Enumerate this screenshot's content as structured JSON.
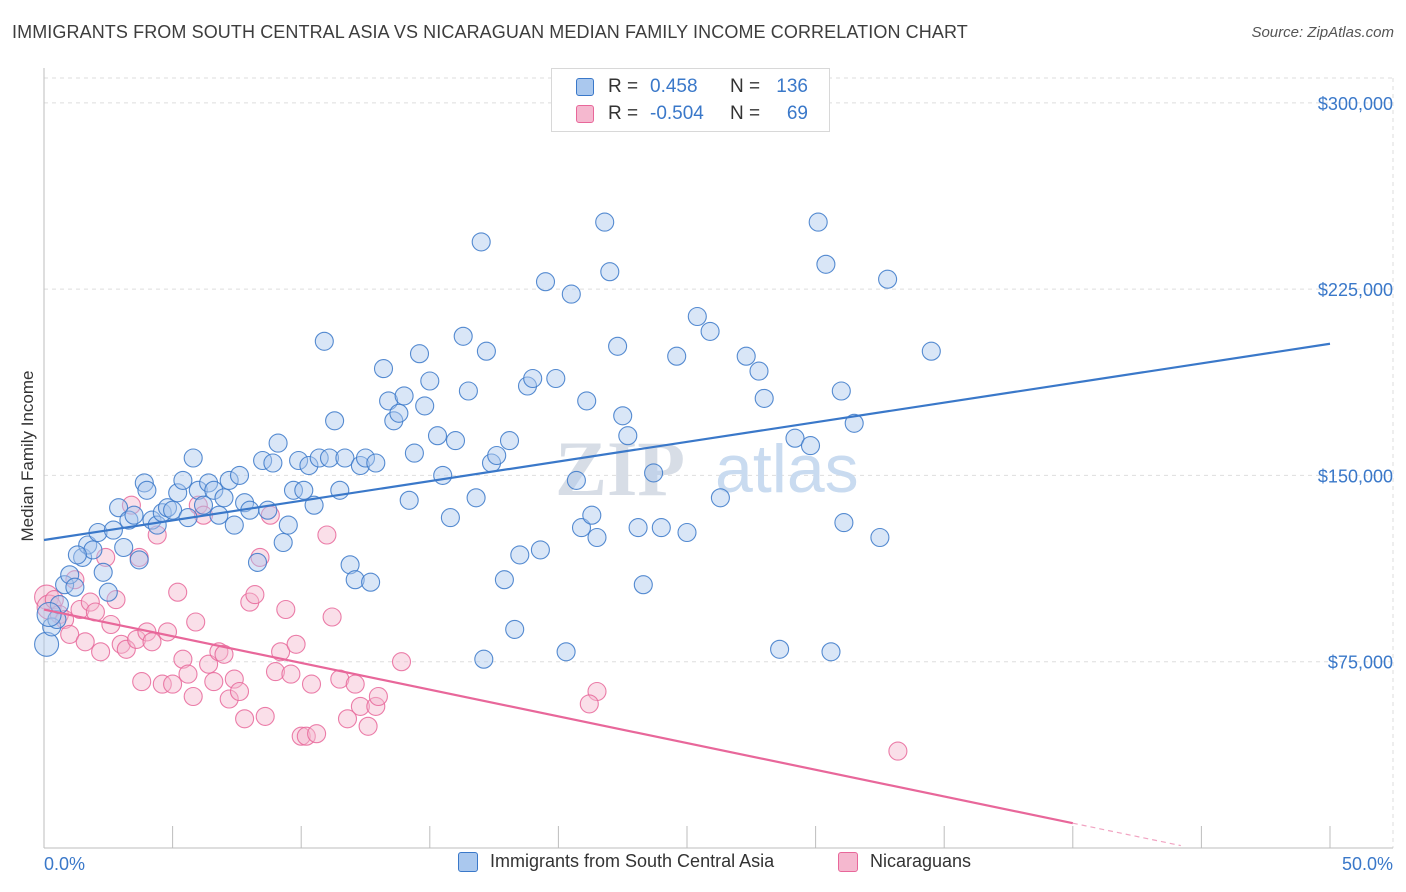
{
  "header": {
    "title": "IMMIGRANTS FROM SOUTH CENTRAL ASIA VS NICARAGUAN MEDIAN FAMILY INCOME CORRELATION CHART",
    "source": "Source: ZipAtlas.com"
  },
  "colors": {
    "blue": "#3a78c9",
    "blue_fill": "#aac8ee",
    "pink": "#e8679a",
    "pink_fill": "#f5b8cf",
    "grid": "#dddddd"
  },
  "legend": {
    "rows": [
      {
        "r_label": "R =",
        "r_value": "0.458",
        "n_label": "N =",
        "n_value": "136"
      },
      {
        "r_label": "R =",
        "r_value": "-0.504",
        "n_label": "N =",
        "n_value": "69"
      }
    ]
  },
  "bottom_legend": {
    "series1": "Immigrants from South Central Asia",
    "series2": "Nicaraguans"
  },
  "watermark": {
    "part1": "ZIP",
    "part2": "atlas"
  },
  "chart_data": {
    "type": "scatter",
    "title": "IMMIGRANTS FROM SOUTH CENTRAL ASIA VS NICARAGUAN MEDIAN FAMILY INCOME CORRELATION CHART",
    "xlabel": "",
    "ylabel": "Median Family Income",
    "xlim": [
      0,
      50
    ],
    "ylim": [
      0,
      310000
    ],
    "x_tick_labels": [
      "0.0%",
      "50.0%"
    ],
    "y_ticks": [
      75000,
      150000,
      225000,
      300000
    ],
    "y_tick_labels": [
      "$75,000",
      "$150,000",
      "$225,000",
      "$300,000"
    ],
    "series": [
      {
        "name": "Immigrants from South Central Asia",
        "r": 0.458,
        "n": 136,
        "trend": {
          "x": [
            0,
            50
          ],
          "y": [
            124000,
            203000
          ]
        },
        "points": [
          [
            0.1,
            82000
          ],
          [
            0.3,
            89000
          ],
          [
            0.5,
            92000
          ],
          [
            0.6,
            98000
          ],
          [
            0.8,
            106000
          ],
          [
            1.0,
            110000
          ],
          [
            1.2,
            105000
          ],
          [
            1.5,
            117000
          ],
          [
            1.7,
            122000
          ],
          [
            1.9,
            120000
          ],
          [
            2.1,
            127000
          ],
          [
            2.3,
            111000
          ],
          [
            2.5,
            103000
          ],
          [
            2.7,
            128000
          ],
          [
            2.9,
            137000
          ],
          [
            3.1,
            121000
          ],
          [
            3.3,
            132000
          ],
          [
            3.5,
            134000
          ],
          [
            3.7,
            116000
          ],
          [
            3.9,
            147000
          ],
          [
            4.0,
            144000
          ],
          [
            4.2,
            132000
          ],
          [
            4.4,
            130000
          ],
          [
            4.6,
            135000
          ],
          [
            4.8,
            137000
          ],
          [
            5.0,
            136000
          ],
          [
            5.2,
            143000
          ],
          [
            5.4,
            148000
          ],
          [
            5.6,
            133000
          ],
          [
            5.8,
            157000
          ],
          [
            6.0,
            144000
          ],
          [
            6.2,
            138000
          ],
          [
            6.4,
            147000
          ],
          [
            6.6,
            144000
          ],
          [
            6.8,
            134000
          ],
          [
            7.0,
            141000
          ],
          [
            7.2,
            148000
          ],
          [
            7.4,
            130000
          ],
          [
            7.6,
            150000
          ],
          [
            7.8,
            139000
          ],
          [
            8.0,
            136000
          ],
          [
            8.3,
            115000
          ],
          [
            8.5,
            156000
          ],
          [
            8.7,
            136000
          ],
          [
            8.9,
            155000
          ],
          [
            9.1,
            163000
          ],
          [
            9.3,
            123000
          ],
          [
            9.5,
            130000
          ],
          [
            9.7,
            144000
          ],
          [
            9.9,
            156000
          ],
          [
            10.1,
            144000
          ],
          [
            10.3,
            154000
          ],
          [
            10.5,
            138000
          ],
          [
            10.7,
            157000
          ],
          [
            10.9,
            204000
          ],
          [
            11.1,
            157000
          ],
          [
            11.3,
            172000
          ],
          [
            11.5,
            144000
          ],
          [
            11.7,
            157000
          ],
          [
            11.9,
            114000
          ],
          [
            12.1,
            108000
          ],
          [
            12.3,
            154000
          ],
          [
            12.5,
            157000
          ],
          [
            12.7,
            107000
          ],
          [
            12.9,
            155000
          ],
          [
            13.2,
            193000
          ],
          [
            13.4,
            180000
          ],
          [
            13.6,
            172000
          ],
          [
            13.8,
            175000
          ],
          [
            14.0,
            182000
          ],
          [
            14.2,
            140000
          ],
          [
            14.4,
            159000
          ],
          [
            14.6,
            199000
          ],
          [
            14.8,
            178000
          ],
          [
            15.0,
            188000
          ],
          [
            15.3,
            166000
          ],
          [
            15.5,
            150000
          ],
          [
            15.8,
            133000
          ],
          [
            16.0,
            164000
          ],
          [
            16.3,
            206000
          ],
          [
            16.5,
            184000
          ],
          [
            16.8,
            141000
          ],
          [
            17.0,
            244000
          ],
          [
            17.2,
            200000
          ],
          [
            17.4,
            155000
          ],
          [
            17.6,
            158000
          ],
          [
            17.9,
            108000
          ],
          [
            18.1,
            164000
          ],
          [
            18.3,
            88000
          ],
          [
            18.5,
            118000
          ],
          [
            18.8,
            186000
          ],
          [
            19.0,
            189000
          ],
          [
            19.3,
            120000
          ],
          [
            19.5,
            228000
          ],
          [
            19.9,
            189000
          ],
          [
            20.3,
            79000
          ],
          [
            20.5,
            223000
          ],
          [
            20.7,
            148000
          ],
          [
            20.9,
            129000
          ],
          [
            21.1,
            180000
          ],
          [
            21.3,
            134000
          ],
          [
            21.5,
            125000
          ],
          [
            21.8,
            252000
          ],
          [
            22.0,
            232000
          ],
          [
            22.3,
            202000
          ],
          [
            22.5,
            174000
          ],
          [
            22.7,
            166000
          ],
          [
            23.1,
            129000
          ],
          [
            23.3,
            106000
          ],
          [
            23.7,
            151000
          ],
          [
            24.0,
            129000
          ],
          [
            24.6,
            198000
          ],
          [
            25.0,
            127000
          ],
          [
            25.4,
            214000
          ],
          [
            25.9,
            208000
          ],
          [
            26.3,
            141000
          ],
          [
            27.3,
            198000
          ],
          [
            27.8,
            192000
          ],
          [
            28.0,
            181000
          ],
          [
            28.6,
            80000
          ],
          [
            29.2,
            165000
          ],
          [
            29.8,
            162000
          ],
          [
            30.1,
            252000
          ],
          [
            30.4,
            235000
          ],
          [
            31.0,
            184000
          ],
          [
            31.1,
            131000
          ],
          [
            31.5,
            171000
          ],
          [
            32.5,
            125000
          ],
          [
            32.8,
            229000
          ],
          [
            34.5,
            200000
          ],
          [
            17.1,
            76000
          ],
          [
            30.6,
            79000
          ],
          [
            0.2,
            94000
          ],
          [
            1.3,
            118000
          ]
        ]
      },
      {
        "name": "Nicaraguans",
        "r": -0.504,
        "n": 69,
        "trend": {
          "x": [
            0,
            40
          ],
          "y": [
            96000,
            10000
          ]
        },
        "points": [
          [
            0.1,
            101000
          ],
          [
            0.2,
            97000
          ],
          [
            0.4,
            100000
          ],
          [
            0.6,
            94000
          ],
          [
            0.8,
            92000
          ],
          [
            1.0,
            86000
          ],
          [
            1.2,
            108000
          ],
          [
            1.4,
            96000
          ],
          [
            1.6,
            83000
          ],
          [
            1.8,
            99000
          ],
          [
            2.0,
            95000
          ],
          [
            2.2,
            79000
          ],
          [
            2.4,
            117000
          ],
          [
            2.6,
            90000
          ],
          [
            2.8,
            100000
          ],
          [
            3.0,
            82000
          ],
          [
            3.2,
            80000
          ],
          [
            3.4,
            138000
          ],
          [
            3.6,
            84000
          ],
          [
            3.8,
            67000
          ],
          [
            4.0,
            87000
          ],
          [
            4.2,
            83000
          ],
          [
            4.4,
            126000
          ],
          [
            4.6,
            66000
          ],
          [
            4.8,
            87000
          ],
          [
            5.0,
            66000
          ],
          [
            5.2,
            103000
          ],
          [
            5.4,
            76000
          ],
          [
            5.6,
            70000
          ],
          [
            5.8,
            61000
          ],
          [
            6.0,
            138000
          ],
          [
            6.2,
            134000
          ],
          [
            6.4,
            74000
          ],
          [
            6.6,
            67000
          ],
          [
            6.8,
            79000
          ],
          [
            7.0,
            78000
          ],
          [
            7.2,
            60000
          ],
          [
            7.4,
            68000
          ],
          [
            7.6,
            63000
          ],
          [
            7.8,
            52000
          ],
          [
            8.0,
            99000
          ],
          [
            8.2,
            102000
          ],
          [
            8.4,
            117000
          ],
          [
            8.6,
            53000
          ],
          [
            8.8,
            134000
          ],
          [
            9.0,
            71000
          ],
          [
            9.2,
            79000
          ],
          [
            9.4,
            96000
          ],
          [
            9.6,
            70000
          ],
          [
            9.8,
            82000
          ],
          [
            10.0,
            45000
          ],
          [
            10.2,
            45000
          ],
          [
            10.4,
            66000
          ],
          [
            10.6,
            46000
          ],
          [
            11.0,
            126000
          ],
          [
            11.2,
            93000
          ],
          [
            11.5,
            68000
          ],
          [
            11.8,
            52000
          ],
          [
            12.3,
            57000
          ],
          [
            12.6,
            49000
          ],
          [
            12.9,
            57000
          ],
          [
            13.0,
            61000
          ],
          [
            13.9,
            75000
          ],
          [
            21.5,
            63000
          ],
          [
            21.2,
            58000
          ],
          [
            12.1,
            66000
          ],
          [
            33.2,
            39000
          ],
          [
            5.9,
            91000
          ],
          [
            3.7,
            117000
          ]
        ]
      }
    ]
  }
}
